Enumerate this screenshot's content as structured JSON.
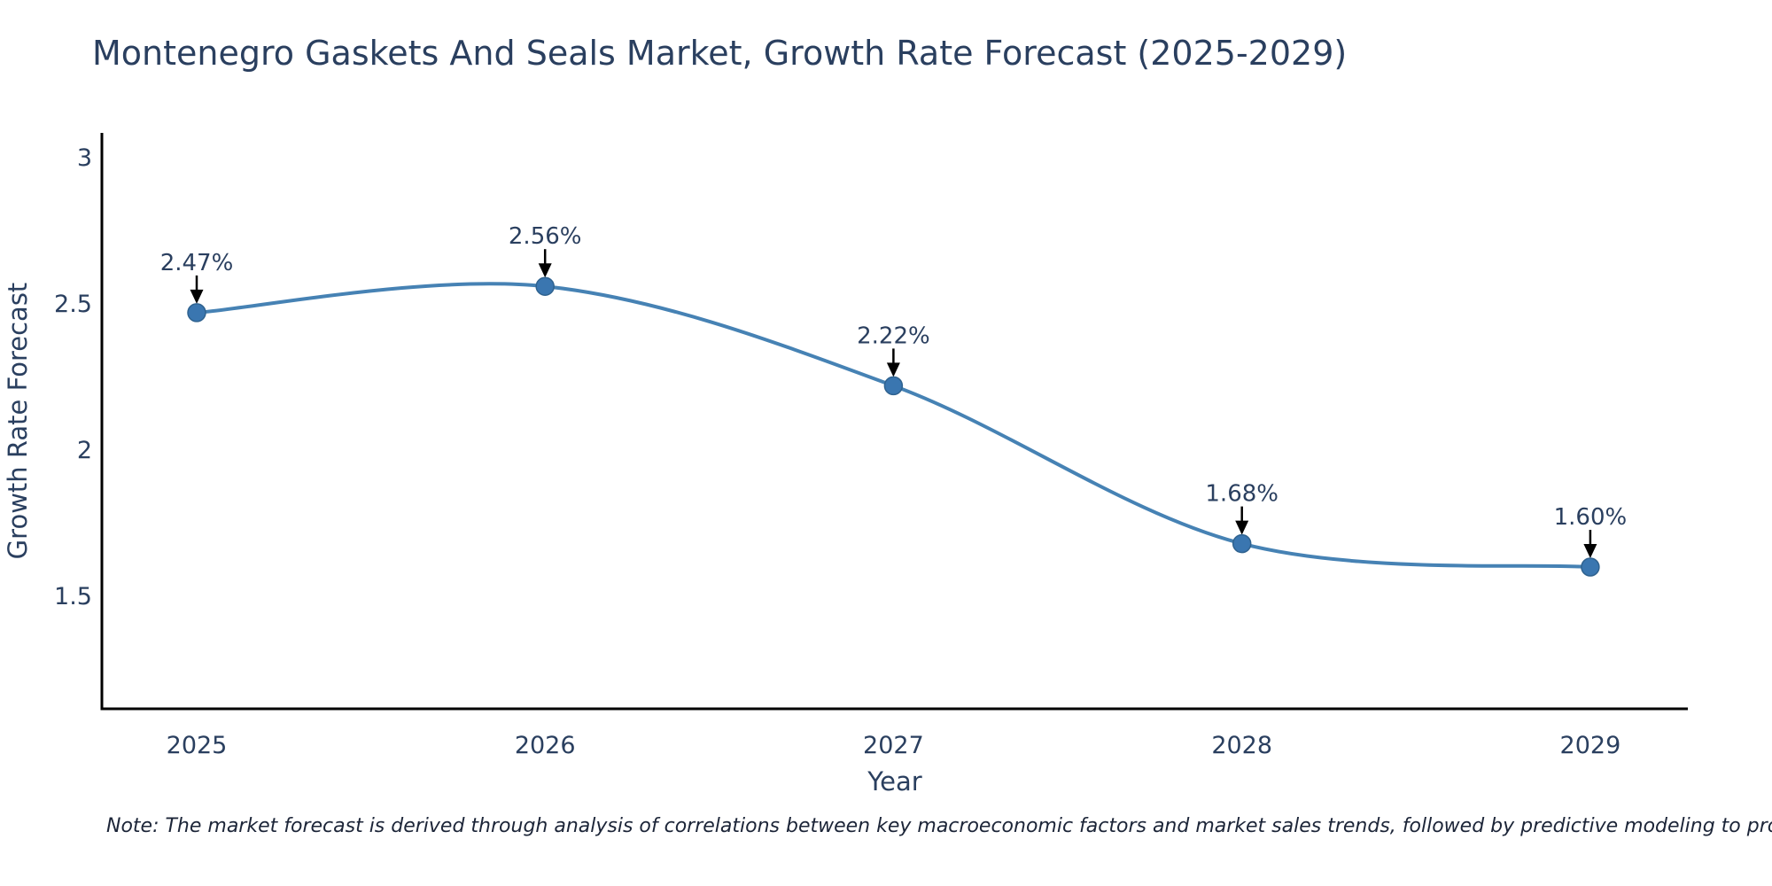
{
  "title": "Montenegro Gaskets And Seals Market, Growth Rate Forecast (2025-2029)",
  "footnote": "Note: The market forecast is derived through analysis of correlations between key macroeconomic factors and market sales trends, followed by predictive modeling to project future sales",
  "chart_data": {
    "type": "line",
    "line_shape": "spline",
    "title": "Montenegro Gaskets And Seals Market, Growth Rate Forecast (2025-2029)",
    "xlabel": "Year",
    "ylabel": "Growth Rate Forecast",
    "x": [
      2025,
      2026,
      2027,
      2028,
      2029
    ],
    "values": [
      2.47,
      2.56,
      2.22,
      1.68,
      1.6
    ],
    "point_labels": [
      "2.47%",
      "2.56%",
      "2.22%",
      "1.68%",
      "1.60%"
    ],
    "xticks": [
      2025,
      2026,
      2027,
      2028,
      2029
    ],
    "xtick_labels": [
      "2025",
      "2026",
      "2027",
      "2028",
      "2029"
    ],
    "yticks": [
      1.5,
      2,
      2.5,
      3
    ],
    "ytick_labels": [
      "1.5",
      "2",
      "2.5",
      "3"
    ],
    "xlim": [
      2024.728,
      2029.28
    ],
    "ylim": [
      1.115,
      3.085
    ],
    "grid": false,
    "legend": "none",
    "colors": {
      "line": "#4682b4",
      "marker": "#3a76b0",
      "marker_edge": "#2f628f",
      "arrow": "#000000",
      "text": "#2a3f5f",
      "axis": "#000000"
    }
  }
}
